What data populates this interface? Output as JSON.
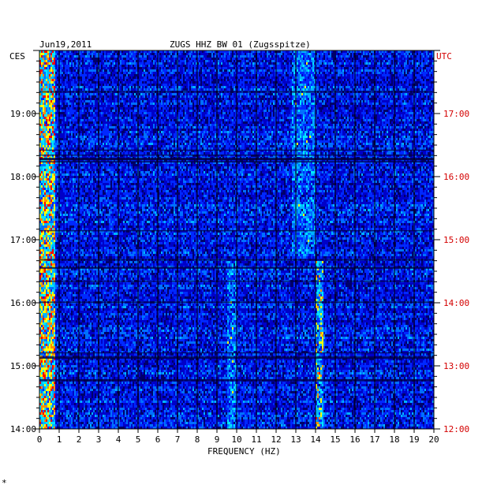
{
  "header": {
    "date": "Jun19,2011",
    "station": "ZUGS HHZ BW 01 (Zugsspitze)"
  },
  "left_axis_label": "CES",
  "right_axis_label": "UTC",
  "footer_mark": "*",
  "colors": {
    "background": "#00008a",
    "grid": "#000000",
    "utc_labels": "#d40000",
    "palette": [
      "#00006a",
      "#0000c8",
      "#0028ff",
      "#0070ff",
      "#00b4ff",
      "#00e8ff",
      "#ffff00",
      "#ff8c00",
      "#ff0000"
    ]
  },
  "chart_data": {
    "type": "heatmap",
    "title": "ZUGS HHZ BW 01 (Zugsspitze)",
    "xlabel": "FREQUENCY (HZ)",
    "xlim": [
      0,
      20
    ],
    "x_ticks": [
      0,
      1,
      2,
      3,
      4,
      5,
      6,
      7,
      8,
      9,
      10,
      11,
      12,
      13,
      14,
      15,
      16,
      17,
      18,
      19,
      20
    ],
    "y_left_ticks": [
      "19:00",
      "18:00",
      "17:00",
      "16:00",
      "15:00",
      "14:00"
    ],
    "y_right_ticks": [
      "17:00",
      "16:00",
      "15:00",
      "14:00",
      "13:00",
      "12:00"
    ],
    "y_left_label": "CES",
    "y_right_label": "UTC",
    "grid": true,
    "features": [
      {
        "freq_range": [
          0,
          0.8
        ],
        "intensity": "high",
        "extent": "full"
      },
      {
        "freq_range": [
          12.8,
          14.0
        ],
        "intensity": "medium",
        "extent": "upper"
      },
      {
        "freq_range": [
          9.5,
          10.0
        ],
        "intensity": "medium",
        "extent": "lower"
      },
      {
        "freq_range": [
          14.0,
          14.4
        ],
        "intensity": "high",
        "extent": "lower"
      }
    ]
  }
}
